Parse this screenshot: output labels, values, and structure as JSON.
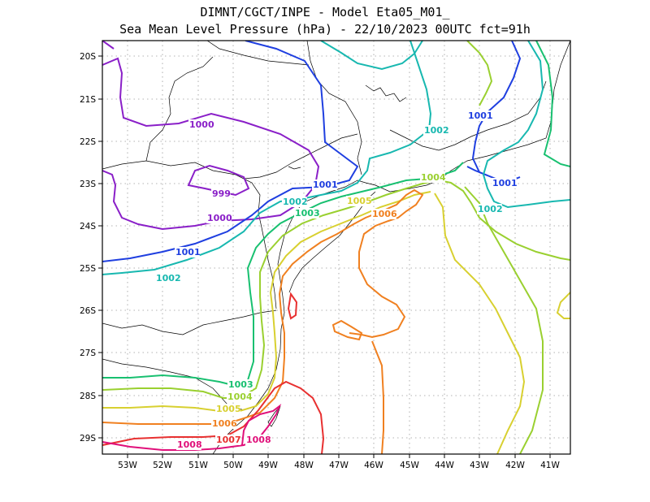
{
  "title": {
    "line1": "DIMNT/CGCT/INPE -  Model Eta05_M01_",
    "line2": "Sea Mean Level Pressure (hPa) - 22/10/2023 00UTC fct=91h"
  },
  "axes": {
    "lat_labels": [
      "20S",
      "21S",
      "22S",
      "23S",
      "24S",
      "25S",
      "26S",
      "27S",
      "28S",
      "29S"
    ],
    "lon_labels": [
      "53W",
      "52W",
      "51W",
      "50W",
      "49W",
      "48W",
      "47W",
      "46W",
      "45W",
      "44W",
      "43W",
      "42W",
      "41W"
    ]
  },
  "contour_colors": {
    "999": "#8a1fc8",
    "1000": "#8a1fc8",
    "1001": "#1f3fe0",
    "1002": "#18b8b0",
    "1003": "#18c070",
    "1004": "#9ad030",
    "1005": "#d8d030",
    "1006": "#f08020",
    "1007": "#e83030",
    "1008": "#e0107a"
  },
  "contour_labels": [
    {
      "text": "1000",
      "color_key": "1000",
      "id": "lbl-1000-a"
    },
    {
      "text": "999",
      "color_key": "999",
      "id": "lbl-999"
    },
    {
      "text": "1000",
      "color_key": "1000",
      "id": "lbl-1000-b"
    },
    {
      "text": "1001",
      "color_key": "1001",
      "id": "lbl-1001-a"
    },
    {
      "text": "1001",
      "color_key": "1001",
      "id": "lbl-1001-b"
    },
    {
      "text": "1001",
      "color_key": "1001",
      "id": "lbl-1001-c"
    },
    {
      "text": "1001",
      "color_key": "1001",
      "id": "lbl-1001-d"
    },
    {
      "text": "1002",
      "color_key": "1002",
      "id": "lbl-1002-a"
    },
    {
      "text": "1002",
      "color_key": "1002",
      "id": "lbl-1002-b"
    },
    {
      "text": "1002",
      "color_key": "1002",
      "id": "lbl-1002-c"
    },
    {
      "text": "1002",
      "color_key": "1002",
      "id": "lbl-1002-d"
    },
    {
      "text": "1003",
      "color_key": "1003",
      "id": "lbl-1003-a"
    },
    {
      "text": "1003",
      "color_key": "1003",
      "id": "lbl-1003-b"
    },
    {
      "text": "1004",
      "color_key": "1004",
      "id": "lbl-1004-a"
    },
    {
      "text": "1004",
      "color_key": "1004",
      "id": "lbl-1004-b"
    },
    {
      "text": "1005",
      "color_key": "1005",
      "id": "lbl-1005-a"
    },
    {
      "text": "1005",
      "color_key": "1005",
      "id": "lbl-1005-b"
    },
    {
      "text": "1006",
      "color_key": "1006",
      "id": "lbl-1006-a"
    },
    {
      "text": "1006",
      "color_key": "1006",
      "id": "lbl-1006-b"
    },
    {
      "text": "1007",
      "color_key": "1007",
      "id": "lbl-1007"
    },
    {
      "text": "1008",
      "color_key": "1008",
      "id": "lbl-1008-a"
    },
    {
      "text": "1008",
      "color_key": "1008",
      "id": "lbl-1008-b"
    }
  ]
}
